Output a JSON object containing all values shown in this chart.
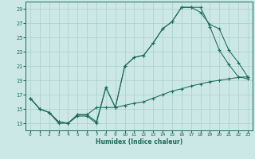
{
  "xlabel": "Humidex (Indice chaleur)",
  "bg_color": "#cce8e6",
  "grid_color": "#aaccca",
  "line_color": "#1a6b5a",
  "tick_color": "#1a6b5a",
  "xlim": [
    -0.5,
    23.5
  ],
  "ylim": [
    12.0,
    30.0
  ],
  "xticks": [
    0,
    1,
    2,
    3,
    4,
    5,
    6,
    7,
    8,
    9,
    10,
    11,
    12,
    13,
    14,
    15,
    16,
    17,
    18,
    19,
    20,
    21,
    22,
    23
  ],
  "yticks": [
    13,
    15,
    17,
    19,
    21,
    23,
    25,
    27,
    29
  ],
  "line1_x": [
    0,
    1,
    2,
    3,
    4,
    5,
    6,
    7,
    8,
    9,
    10,
    11,
    12,
    13,
    14,
    15,
    16,
    17,
    18,
    19,
    20,
    21,
    22,
    23
  ],
  "line1_y": [
    16.5,
    15.0,
    14.5,
    13.0,
    13.0,
    14.0,
    14.0,
    13.0,
    18.0,
    15.2,
    21.0,
    22.2,
    22.5,
    24.2,
    26.2,
    27.2,
    29.2,
    29.2,
    29.2,
    26.5,
    23.2,
    21.2,
    19.5,
    19.2
  ],
  "line2_x": [
    0,
    1,
    2,
    3,
    4,
    5,
    6,
    7,
    8,
    9,
    10,
    11,
    12,
    13,
    14,
    15,
    16,
    17,
    18,
    19,
    20,
    21,
    22,
    23
  ],
  "line2_y": [
    16.5,
    15.0,
    14.5,
    13.2,
    13.0,
    14.2,
    14.2,
    15.2,
    15.2,
    15.2,
    15.5,
    15.8,
    16.0,
    16.5,
    17.0,
    17.5,
    17.8,
    18.2,
    18.5,
    18.8,
    19.0,
    19.2,
    19.4,
    19.5
  ],
  "line3_x": [
    0,
    1,
    2,
    3,
    4,
    5,
    6,
    7,
    8,
    9,
    10,
    11,
    12,
    13,
    14,
    15,
    16,
    17,
    18,
    19,
    20,
    21,
    22,
    23
  ],
  "line3_y": [
    16.5,
    15.0,
    14.5,
    13.2,
    13.0,
    14.2,
    14.2,
    13.2,
    18.0,
    15.2,
    21.0,
    22.2,
    22.5,
    24.2,
    26.2,
    27.2,
    29.2,
    29.2,
    28.5,
    26.8,
    26.2,
    23.2,
    21.5,
    19.5
  ],
  "figsize": [
    3.2,
    2.0
  ],
  "dpi": 100
}
